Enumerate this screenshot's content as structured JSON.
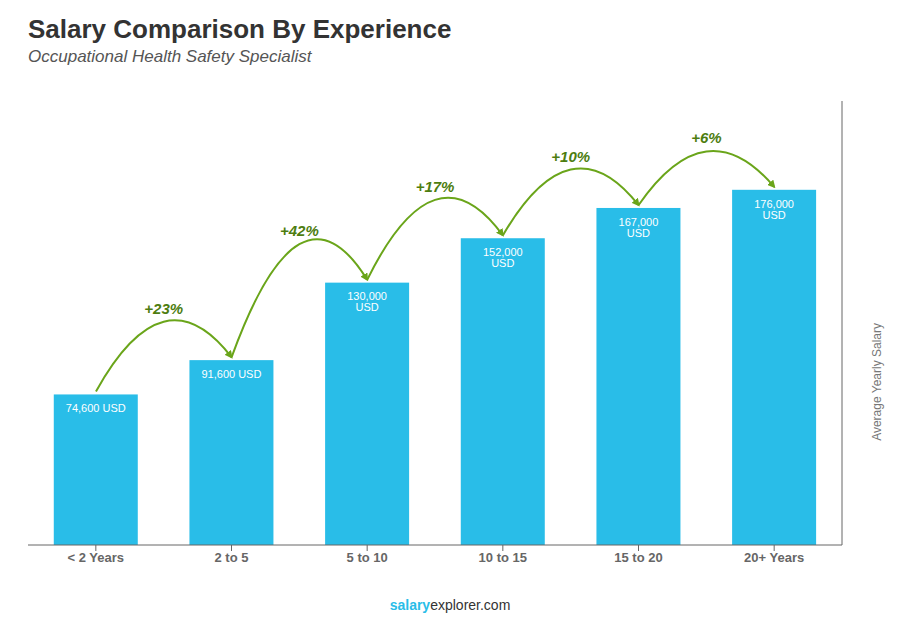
{
  "chart_data": {
    "type": "bar",
    "title": "Salary Comparison By Experience",
    "subtitle": "Occupational Health Safety Specialist",
    "y_label": "Average Yearly Salary",
    "categories": [
      "< 2 Years",
      "2 to 5",
      "5 to 10",
      "10 to 15",
      "15 to 20",
      "20+ Years"
    ],
    "values": [
      74600,
      91600,
      130000,
      152000,
      167000,
      176000
    ],
    "value_labels": [
      "74,600 USD",
      "91,600 USD",
      "130,000 USD",
      "152,000 USD",
      "167,000 USD",
      "176,000 USD"
    ],
    "data_labels": true,
    "color": "#29bde8",
    "ylim": [
      0,
      220000
    ],
    "tick_labels": "x",
    "grid": false,
    "pct_changes": [
      "+23%",
      "+42%",
      "+17%",
      "+10%",
      "+6%"
    ],
    "footer": [
      "salary",
      "explorer.com"
    ]
  }
}
